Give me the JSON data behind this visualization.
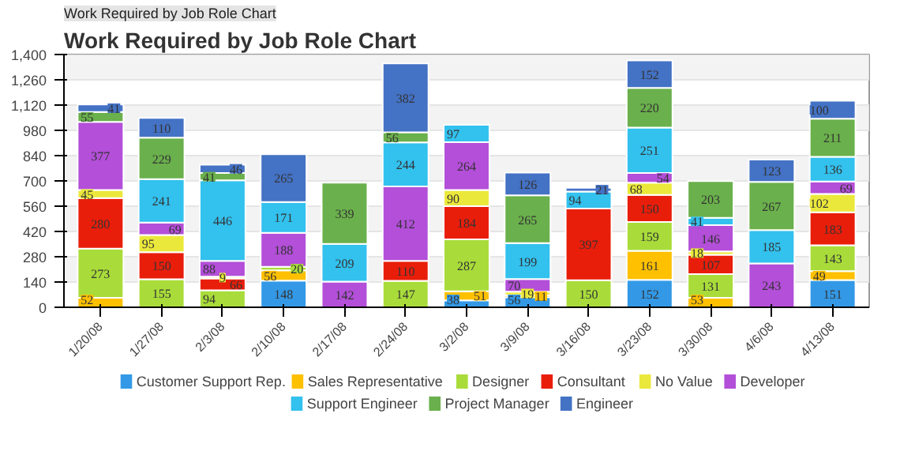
{
  "chart_data": {
    "type": "bar",
    "stacked": true,
    "title": "Work Required by Job Role Chart",
    "annotations": [
      "Work Required by Job Role Chart"
    ],
    "categories": [
      "1/20/08",
      "1/27/08",
      "2/3/08",
      "2/10/08",
      "2/17/08",
      "2/24/08",
      "3/2/08",
      "3/9/08",
      "3/16/08",
      "3/23/08",
      "3/30/08",
      "4/6/08",
      "4/13/08"
    ],
    "series": [
      {
        "name": "Customer Support Rep.",
        "color": "#3399e6",
        "values": [
          null,
          null,
          null,
          148,
          null,
          null,
          38,
          56,
          null,
          152,
          null,
          null,
          151
        ]
      },
      {
        "name": "Sales Representative",
        "color": "#ffc000",
        "values": [
          52,
          null,
          null,
          56,
          null,
          null,
          51,
          11,
          null,
          161,
          53,
          null,
          49
        ]
      },
      {
        "name": "Designer",
        "color": "#a9dc3a",
        "values": [
          273,
          155,
          94,
          20,
          null,
          147,
          287,
          null,
          150,
          159,
          131,
          null,
          143
        ]
      },
      {
        "name": "Consultant",
        "color": "#e81e0b",
        "values": [
          280,
          150,
          66,
          null,
          null,
          110,
          184,
          null,
          397,
          150,
          107,
          null,
          183
        ]
      },
      {
        "name": "No Value",
        "color": "#ebe83c",
        "values": [
          45,
          95,
          9,
          null,
          null,
          null,
          90,
          19,
          null,
          68,
          18,
          null,
          102
        ]
      },
      {
        "name": "Developer",
        "color": "#b34fd8",
        "values": [
          377,
          69,
          88,
          188,
          142,
          412,
          264,
          70,
          null,
          54,
          146,
          243,
          69
        ]
      },
      {
        "name": "Support Engineer",
        "color": "#33c1ee",
        "values": [
          null,
          241,
          446,
          171,
          209,
          244,
          97,
          199,
          94,
          251,
          41,
          185,
          136
        ]
      },
      {
        "name": "Project Manager",
        "color": "#6ab04c",
        "values": [
          55,
          229,
          41,
          null,
          339,
          56,
          null,
          265,
          null,
          220,
          203,
          267,
          211
        ]
      },
      {
        "name": "Engineer",
        "color": "#4472c4",
        "values": [
          41,
          110,
          46,
          265,
          null,
          382,
          null,
          126,
          21,
          152,
          null,
          123,
          100
        ]
      }
    ],
    "ylim": [
      0,
      1400
    ],
    "yticks": [
      0,
      140,
      280,
      420,
      560,
      700,
      840,
      980,
      {
        "value": 1120,
        "label": "1,120"
      },
      {
        "value": 1260,
        "label": "1,260"
      },
      {
        "value": 1400,
        "label": "1,400"
      }
    ],
    "grid": "y",
    "legend": "bottom",
    "data_labels": true
  }
}
